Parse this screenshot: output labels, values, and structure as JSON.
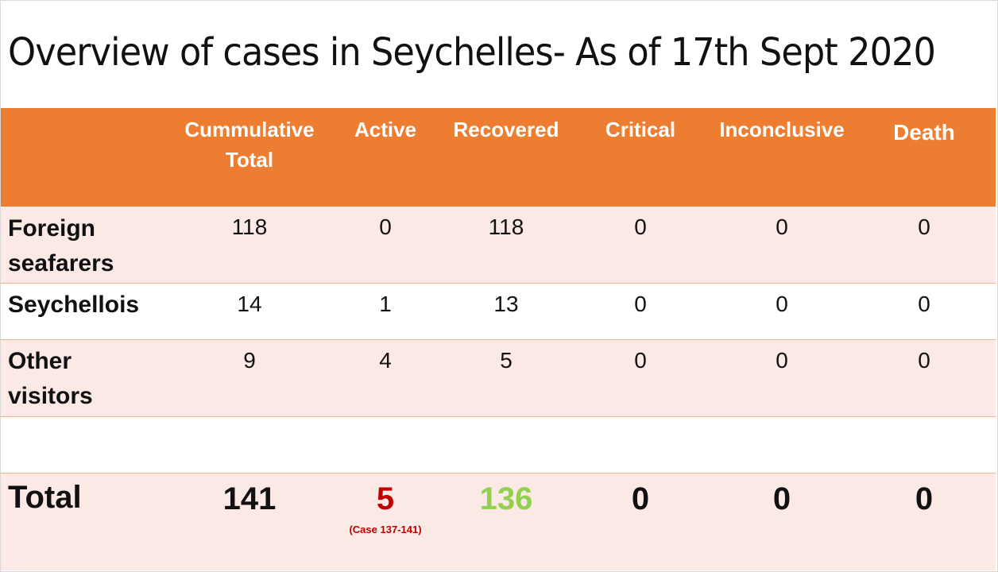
{
  "title": "Overview  of cases in Seychelles- As of 17th Sept 2020",
  "columns": {
    "total_line1": "Cummulative",
    "total_line2": "Total",
    "active": "Active",
    "recovered": "Recovered",
    "critical": "Critical",
    "inconclusive": "Inconclusive",
    "death": "Death"
  },
  "rows": [
    {
      "label_line1": "Foreign",
      "label_line2": "seafarers",
      "total": "118",
      "active": "0",
      "recovered": "118",
      "critical": "0",
      "inconclusive": "0",
      "death": "0"
    },
    {
      "label_line1": "Seychellois",
      "label_line2": "",
      "total": "14",
      "active": "1",
      "recovered": "13",
      "critical": "0",
      "inconclusive": "0",
      "death": "0"
    },
    {
      "label_line1": "Other",
      "label_line2": "visitors",
      "total": "9",
      "active": "4",
      "recovered": "5",
      "critical": "0",
      "inconclusive": "0",
      "death": "0"
    }
  ],
  "totals": {
    "label": "Total",
    "total": "141",
    "active": "5",
    "active_note": "(Case 137-141)",
    "recovered": "136",
    "critical": "0",
    "inconclusive": "0",
    "death": "0"
  },
  "colors": {
    "header_bg": "#ED7D31",
    "row_tint": "#FBE9E6",
    "active_total": "#C00000",
    "recovered_total": "#92D050"
  }
}
